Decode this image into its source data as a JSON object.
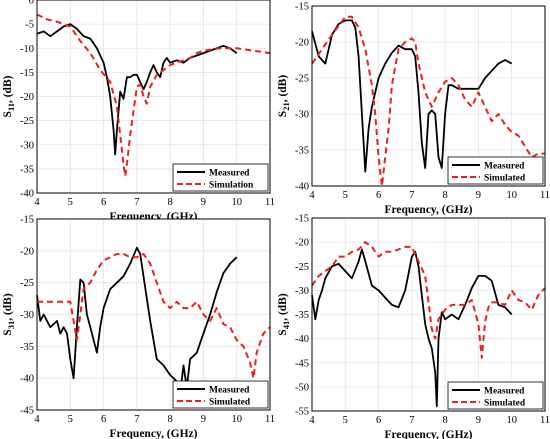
{
  "colors": {
    "measured": "#000000",
    "simulated": "#e8201f",
    "axis": "#000000",
    "grid": "#e3e3e3"
  },
  "chart_data": [
    {
      "type": "line",
      "xlabel": "Frequency, (GHz)",
      "ylabel": "S11, (dB)",
      "ylabel_main": "S",
      "ylabel_sub": "11",
      "ylabel_suffix": ", (dB)",
      "xlim": [
        4,
        11
      ],
      "ylim": [
        -40,
        0
      ],
      "xticks": [
        "4",
        "5",
        "6",
        "7",
        "8",
        "9",
        "10",
        "11"
      ],
      "yticks": [
        "0",
        "-5",
        "-10",
        "-15",
        "-20",
        "-25",
        "-30",
        "-35",
        "-40"
      ],
      "grid": true,
      "legend_position": "bottom-right",
      "series": [
        {
          "name": "Measured",
          "style": "solid",
          "x": [
            4.0,
            4.2,
            4.4,
            4.6,
            4.8,
            5.0,
            5.2,
            5.4,
            5.6,
            5.8,
            6.0,
            6.1,
            6.2,
            6.3,
            6.35,
            6.4,
            6.5,
            6.6,
            6.7,
            6.8,
            6.9,
            7.0,
            7.1,
            7.2,
            7.3,
            7.4,
            7.5,
            7.6,
            7.7,
            7.8,
            7.9,
            8.0,
            8.2,
            8.4,
            8.6,
            8.8,
            9.0,
            9.2,
            9.4,
            9.6,
            9.8,
            10.0
          ],
          "y": [
            -7,
            -6.5,
            -7.5,
            -6.5,
            -5.5,
            -5,
            -6,
            -7.5,
            -8,
            -10,
            -13,
            -16,
            -20,
            -27,
            -32,
            -27,
            -19,
            -20.5,
            -16,
            -16,
            -15.5,
            -15.5,
            -17,
            -18.5,
            -17,
            -15,
            -13.5,
            -15,
            -16,
            -13,
            -12,
            -13,
            -12.5,
            -13,
            -12,
            -11.5,
            -11,
            -10.5,
            -10,
            -9.5,
            -10,
            -11
          ]
        },
        {
          "name": "Simulation",
          "style": "dashed",
          "x": [
            4.0,
            4.3,
            4.6,
            5.0,
            5.3,
            5.6,
            5.9,
            6.2,
            6.4,
            6.5,
            6.6,
            6.65,
            6.7,
            6.8,
            6.9,
            7.0,
            7.1,
            7.2,
            7.3,
            7.4,
            7.6,
            7.8,
            8.0,
            8.2,
            8.4,
            8.6,
            8.8,
            9.0,
            9.5,
            10.0,
            10.5,
            11.0
          ],
          "y": [
            -3,
            -4,
            -4.5,
            -5.5,
            -8.5,
            -11,
            -14.5,
            -17,
            -22,
            -28,
            -34,
            -36.5,
            -34,
            -28,
            -23,
            -18,
            -17.5,
            -20,
            -21.5,
            -18,
            -15.5,
            -14.5,
            -13.5,
            -13,
            -12.5,
            -12,
            -11,
            -10.5,
            -10,
            -10,
            -10.5,
            -11
          ]
        }
      ]
    },
    {
      "type": "line",
      "xlabel": "Frequency, (GHz)",
      "ylabel": "S21, (dB)",
      "ylabel_main": "S",
      "ylabel_sub": "21",
      "ylabel_suffix": ", (dB)",
      "xlim": [
        4,
        11
      ],
      "ylim": [
        -40,
        -15
      ],
      "xticks": [
        "4",
        "5",
        "6",
        "7",
        "8",
        "9",
        "10",
        "11"
      ],
      "yticks": [
        "-15",
        "-20",
        "-25",
        "-30",
        "-35",
        "-40"
      ],
      "grid": true,
      "legend_position": "bottom-right",
      "series": [
        {
          "name": "Measured",
          "style": "solid",
          "x": [
            4.0,
            4.2,
            4.4,
            4.6,
            4.8,
            5.0,
            5.2,
            5.3,
            5.4,
            5.5,
            5.6,
            5.7,
            5.8,
            6.0,
            6.2,
            6.4,
            6.6,
            6.8,
            7.0,
            7.1,
            7.2,
            7.3,
            7.4,
            7.5,
            7.6,
            7.7,
            7.8,
            7.9,
            8.0,
            8.1,
            8.2,
            8.4,
            8.6,
            8.8,
            9.0,
            9.2,
            9.4,
            9.6,
            9.8,
            10.0
          ],
          "y": [
            -18.5,
            -22,
            -23,
            -19,
            -17.5,
            -17,
            -17,
            -18,
            -22,
            -30,
            -38,
            -32,
            -29,
            -25,
            -23,
            -21.5,
            -20.5,
            -21,
            -21,
            -22,
            -27,
            -34,
            -37.5,
            -30,
            -29.5,
            -30,
            -36,
            -37.5,
            -30,
            -26,
            -26,
            -26.5,
            -26.5,
            -26.5,
            -26.5,
            -25,
            -24,
            -23,
            -22.5,
            -23
          ]
        },
        {
          "name": "Simulated",
          "style": "dashed",
          "x": [
            4.0,
            4.3,
            4.6,
            5.0,
            5.2,
            5.4,
            5.6,
            5.8,
            5.9,
            6.0,
            6.1,
            6.2,
            6.3,
            6.4,
            6.6,
            6.8,
            7.0,
            7.1,
            7.2,
            7.4,
            7.6,
            7.8,
            8.0,
            8.2,
            8.4,
            8.6,
            8.8,
            9.0,
            9.2,
            9.4,
            9.6,
            9.8,
            10.0,
            10.2,
            10.4,
            10.6,
            10.8,
            11.0
          ],
          "y": [
            -23,
            -21,
            -19,
            -16.5,
            -16.5,
            -18,
            -21,
            -26,
            -30,
            -36,
            -40,
            -36,
            -32,
            -26,
            -21,
            -20,
            -19.5,
            -20,
            -23,
            -27,
            -29,
            -27,
            -25.5,
            -25,
            -26,
            -28,
            -29,
            -27,
            -29,
            -31,
            -30,
            -31.5,
            -32.5,
            -33,
            -34.5,
            -36,
            -35.5,
            -35.5
          ]
        }
      ]
    },
    {
      "type": "line",
      "xlabel": "Frequency, (GHz)",
      "ylabel": "S31, (dB)",
      "ylabel_main": "S",
      "ylabel_sub": "31",
      "ylabel_suffix": ", (dB)",
      "xlim": [
        4,
        11
      ],
      "ylim": [
        -45,
        -15
      ],
      "xticks": [
        "4",
        "5",
        "6",
        "7",
        "8",
        "9",
        "10",
        "11"
      ],
      "yticks": [
        "-15",
        "-20",
        "-25",
        "-30",
        "-35",
        "-40",
        "-45"
      ],
      "grid": true,
      "legend_position": "bottom-right",
      "series": [
        {
          "name": "Measured",
          "style": "solid",
          "x": [
            4.0,
            4.1,
            4.2,
            4.3,
            4.4,
            4.5,
            4.6,
            4.7,
            4.8,
            4.9,
            5.0,
            5.1,
            5.2,
            5.3,
            5.4,
            5.5,
            5.6,
            5.7,
            5.8,
            5.9,
            6.0,
            6.2,
            6.4,
            6.6,
            6.8,
            7.0,
            7.1,
            7.2,
            7.4,
            7.6,
            7.8,
            8.0,
            8.2,
            8.3,
            8.4,
            8.5,
            8.6,
            8.8,
            9.0,
            9.2,
            9.4,
            9.6,
            9.8,
            10.0
          ],
          "y": [
            -27,
            -31,
            -30,
            -31,
            -32,
            -31.5,
            -31,
            -33,
            -32,
            -33,
            -37,
            -40,
            -32,
            -24.5,
            -25,
            -30,
            -32,
            -34,
            -36,
            -32,
            -29,
            -26,
            -25,
            -24,
            -22,
            -19.5,
            -20.5,
            -24,
            -31,
            -37,
            -38,
            -39.5,
            -40.5,
            -42.5,
            -38,
            -41.5,
            -37,
            -36,
            -33,
            -30,
            -26.5,
            -23.5,
            -22,
            -21
          ]
        },
        {
          "name": "Simulated",
          "style": "dashed",
          "x": [
            4.0,
            4.2,
            4.4,
            4.6,
            4.8,
            5.0,
            5.1,
            5.2,
            5.3,
            5.4,
            5.6,
            5.8,
            6.0,
            6.2,
            6.4,
            6.6,
            6.8,
            7.0,
            7.2,
            7.4,
            7.6,
            7.8,
            8.0,
            8.2,
            8.4,
            8.6,
            8.8,
            9.0,
            9.2,
            9.4,
            9.6,
            9.8,
            10.0,
            10.2,
            10.4,
            10.5,
            10.6,
            10.8,
            11.0
          ],
          "y": [
            -28,
            -28,
            -28,
            -28,
            -28,
            -28,
            -31,
            -34,
            -30,
            -26,
            -25,
            -23,
            -21.5,
            -21,
            -20.5,
            -20.5,
            -21,
            -21,
            -20.5,
            -22,
            -25,
            -28,
            -29,
            -28,
            -29,
            -29,
            -28,
            -30,
            -31,
            -29,
            -31.5,
            -32,
            -34,
            -35,
            -37.5,
            -40,
            -36,
            -33,
            -32
          ]
        }
      ]
    },
    {
      "type": "line",
      "xlabel": "Frequency, (GHz)",
      "ylabel": "S41, (dB)",
      "ylabel_main": "S",
      "ylabel_sub": "41",
      "ylabel_suffix": ", (dB)",
      "xlim": [
        4,
        11
      ],
      "ylim": [
        -55,
        -15
      ],
      "xticks": [
        "4",
        "5",
        "6",
        "7",
        "8",
        "9",
        "10",
        "11"
      ],
      "yticks": [
        "-15",
        "-20",
        "-25",
        "-30",
        "-35",
        "-40",
        "-45",
        "-50",
        "-55"
      ],
      "grid": true,
      "legend_position": "bottom-right",
      "series": [
        {
          "name": "Measured",
          "style": "solid",
          "x": [
            4.0,
            4.1,
            4.2,
            4.3,
            4.4,
            4.6,
            4.8,
            5.0,
            5.2,
            5.4,
            5.5,
            5.6,
            5.8,
            6.0,
            6.2,
            6.4,
            6.6,
            6.8,
            7.0,
            7.1,
            7.2,
            7.3,
            7.4,
            7.5,
            7.6,
            7.7,
            7.75,
            7.8,
            7.9,
            8.0,
            8.2,
            8.4,
            8.6,
            8.8,
            9.0,
            9.2,
            9.4,
            9.6,
            9.8,
            10.0
          ],
          "y": [
            -31,
            -36,
            -32,
            -30,
            -27.5,
            -25,
            -24.5,
            -26,
            -27.5,
            -24,
            -21.5,
            -24,
            -29,
            -30,
            -31.5,
            -33,
            -33.5,
            -30,
            -23,
            -22,
            -25,
            -31,
            -37,
            -40,
            -42,
            -47,
            -54,
            -40,
            -34.5,
            -36,
            -35,
            -36,
            -33,
            -29.5,
            -27,
            -27,
            -28,
            -33,
            -33.5,
            -35
          ]
        },
        {
          "name": "Simulated",
          "style": "dashed",
          "x": [
            4.0,
            4.2,
            4.4,
            4.6,
            4.8,
            5.0,
            5.2,
            5.4,
            5.6,
            5.8,
            6.0,
            6.2,
            6.4,
            6.6,
            6.8,
            7.0,
            7.2,
            7.4,
            7.6,
            7.7,
            7.8,
            8.0,
            8.2,
            8.4,
            8.6,
            8.8,
            9.0,
            9.1,
            9.2,
            9.3,
            9.4,
            9.6,
            9.8,
            10.0,
            10.2,
            10.4,
            10.6,
            10.8,
            11.0
          ],
          "y": [
            -29,
            -27,
            -26,
            -25,
            -23,
            -23,
            -22,
            -21.5,
            -20,
            -21,
            -23,
            -22,
            -22,
            -21.5,
            -21,
            -21,
            -24,
            -27,
            -38,
            -40,
            -36,
            -34,
            -33,
            -33,
            -33,
            -32,
            -37,
            -44,
            -36.5,
            -33.5,
            -32.5,
            -32.5,
            -33,
            -30,
            -32,
            -32.5,
            -34,
            -31,
            -29.5
          ]
        }
      ]
    }
  ]
}
